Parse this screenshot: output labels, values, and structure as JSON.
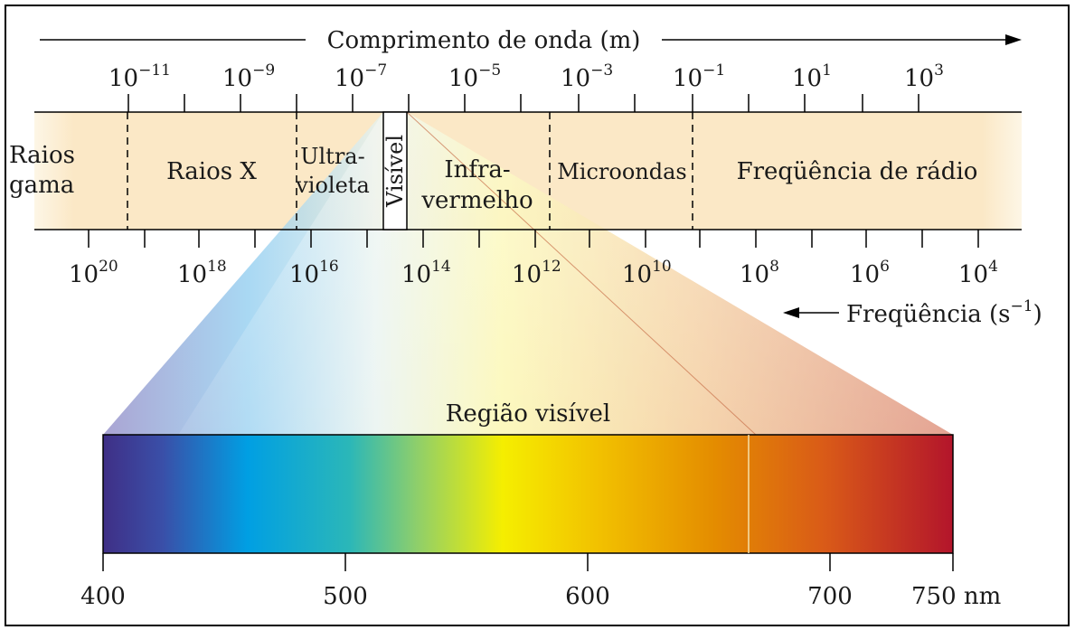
{
  "title": {
    "wavelength_axis": "Comprimento de onda (m)",
    "frequency_axis": "Freqüência (s",
    "frequency_axis_exponent": "−1",
    "frequency_axis_close": ")"
  },
  "wavelength_ticks": [
    {
      "base": "10",
      "exp": "−11"
    },
    {
      "base": "10",
      "exp": "−9"
    },
    {
      "base": "10",
      "exp": "−7"
    },
    {
      "base": "10",
      "exp": "−5"
    },
    {
      "base": "10",
      "exp": "−3"
    },
    {
      "base": "10",
      "exp": "−1"
    },
    {
      "base": "10",
      "exp": "1"
    },
    {
      "base": "10",
      "exp": "3"
    }
  ],
  "frequency_ticks": [
    {
      "base": "10",
      "exp": "20"
    },
    {
      "base": "10",
      "exp": "18"
    },
    {
      "base": "10",
      "exp": "16"
    },
    {
      "base": "10",
      "exp": "14"
    },
    {
      "base": "10",
      "exp": "12"
    },
    {
      "base": "10",
      "exp": "10"
    },
    {
      "base": "10",
      "exp": "8"
    },
    {
      "base": "10",
      "exp": "6"
    },
    {
      "base": "10",
      "exp": "4"
    }
  ],
  "regions": {
    "gamma_line1": "Raios",
    "gamma_line2": "gama",
    "xray": "Raios X",
    "uv_line1": "Ultra-",
    "uv_line2": "violeta",
    "visible": "Visível",
    "ir_line1": "Infra-",
    "ir_line2": "vermelho",
    "microwave": "Microondas",
    "radio": "Freqüência de rádio"
  },
  "visible_region": {
    "label": "Região visível",
    "ticks": [
      "400",
      "500",
      "600",
      "700",
      "750 nm"
    ]
  },
  "colors": {
    "band": "#fbe8c6",
    "violet": "#4b3a8f",
    "blue": "#00a0e3",
    "green": "#6cc08a",
    "yellow": "#f8ee00",
    "orange": "#e58b00",
    "red": "#b0202a"
  }
}
